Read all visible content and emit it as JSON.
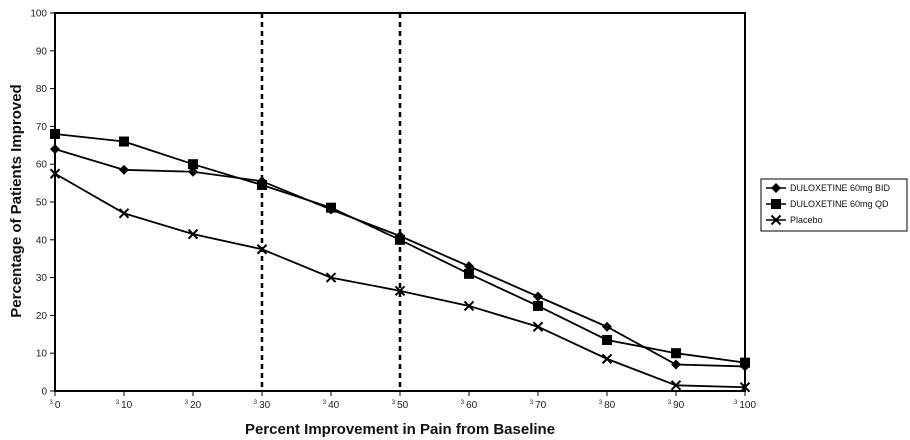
{
  "chart_data": {
    "type": "line",
    "xlabel": "Percent Improvement in Pain from Baseline",
    "ylabel": "Percentage of Patients Improved",
    "x_tick_prefix": "3",
    "x": [
      0,
      10,
      20,
      30,
      40,
      50,
      60,
      70,
      80,
      90,
      100
    ],
    "x_tick_labels": [
      "0",
      "10",
      "20",
      "30",
      "40",
      "50",
      "60",
      "70",
      "80",
      "90",
      "100"
    ],
    "xlim": [
      0,
      100
    ],
    "ylim": [
      0,
      100
    ],
    "y_ticks": [
      0,
      10,
      20,
      30,
      40,
      50,
      60,
      70,
      80,
      90,
      100
    ],
    "vertical_reference_lines": [
      30,
      50
    ],
    "grid": false,
    "legend_position": "right",
    "series": [
      {
        "name": "DULOXETINE 60mg BID",
        "marker": "diamond",
        "values": [
          64,
          58.5,
          58,
          55.5,
          48,
          41,
          33,
          25,
          17,
          7,
          6.5
        ]
      },
      {
        "name": "DULOXETINE 60mg QD",
        "marker": "square",
        "values": [
          68,
          66,
          60,
          54.5,
          48.5,
          40,
          31,
          22.5,
          13.5,
          10,
          7.5
        ]
      },
      {
        "name": "Placebo",
        "marker": "x",
        "values": [
          57.5,
          47,
          41.5,
          37.5,
          30,
          26.5,
          22.5,
          17,
          8.5,
          1.5,
          1
        ]
      }
    ]
  }
}
